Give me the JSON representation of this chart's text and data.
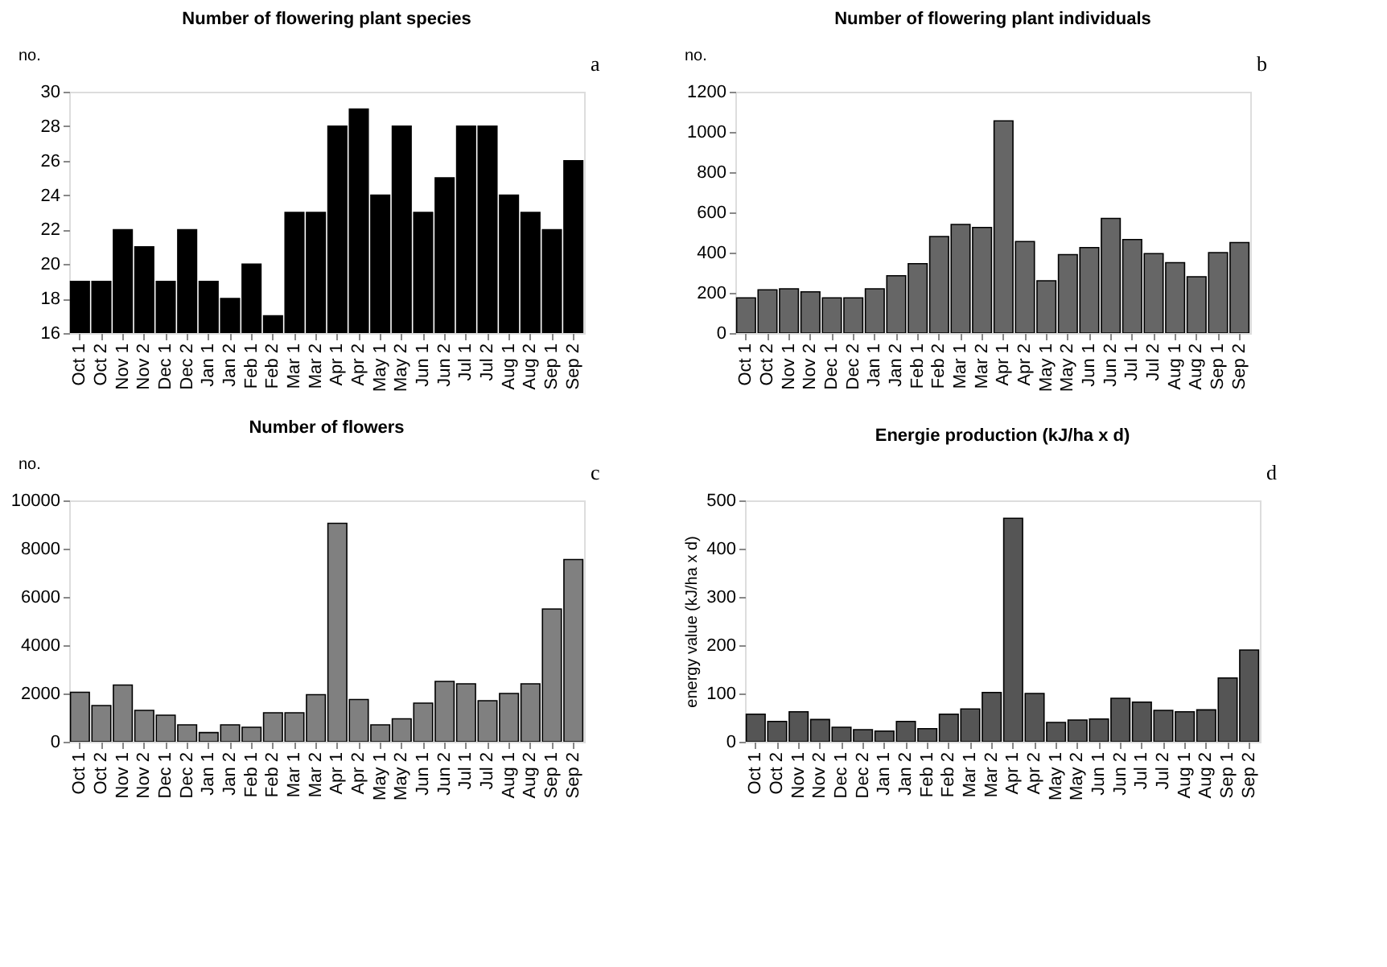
{
  "chart_data": [
    {
      "type": "bar",
      "title": "Number of flowering plant species",
      "ylabel": "no.",
      "annotations": [
        "a"
      ],
      "color": "#000000",
      "ylim": [
        16,
        30
      ],
      "yticks": [
        16,
        18,
        20,
        22,
        24,
        26,
        28,
        30
      ],
      "grid": false,
      "categories": [
        "Oct 1",
        "Oct 2",
        "Nov 1",
        "Nov 2",
        "Dec 1",
        "Dec 2",
        "Jan 1",
        "Jan 2",
        "Feb 1",
        "Feb 2",
        "Mar 1",
        "Mar 2",
        "Apr 1",
        "Apr 2",
        "May 1",
        "May 2",
        "Jun 1",
        "Jun 2",
        "Jul 1",
        "Jul 2",
        "Aug 1",
        "Aug 2",
        "Sep 1",
        "Sep 2"
      ],
      "values": [
        19,
        19,
        22,
        21,
        19,
        22,
        19,
        18,
        20,
        17,
        23,
        23,
        28,
        29,
        24,
        28,
        23,
        25,
        28,
        28,
        24,
        23,
        22,
        26
      ]
    },
    {
      "type": "bar",
      "title": "Number of flowering plant individuals",
      "ylabel": "no.",
      "annotations": [
        "b"
      ],
      "color": "#666666",
      "ylim": [
        0,
        1200
      ],
      "yticks": [
        0,
        200,
        400,
        600,
        800,
        1000,
        1200
      ],
      "grid": false,
      "categories": [
        "Oct 1",
        "Oct 2",
        "Nov 1",
        "Nov 2",
        "Dec 1",
        "Dec 2",
        "Jan 1",
        "Jan 2",
        "Feb 1",
        "Feb 2",
        "Mar 1",
        "Mar 2",
        "Apr 1",
        "Apr 2",
        "May 1",
        "May 2",
        "Jun 1",
        "Jun 2",
        "Jul 1",
        "Jul 2",
        "Aug 1",
        "Aug 2",
        "Sep 1",
        "Sep 2"
      ],
      "values": [
        175,
        215,
        220,
        205,
        175,
        175,
        220,
        285,
        345,
        480,
        540,
        525,
        1055,
        455,
        260,
        390,
        425,
        570,
        465,
        395,
        350,
        280,
        400,
        450
      ]
    },
    {
      "type": "bar",
      "title": "Number of flowers",
      "ylabel": "no.",
      "annotations": [
        "c"
      ],
      "color": "#808080",
      "ylim": [
        0,
        10000
      ],
      "yticks": [
        0,
        2000,
        4000,
        6000,
        8000,
        10000
      ],
      "grid": false,
      "categories": [
        "Oct 1",
        "Oct 2",
        "Nov 1",
        "Nov 2",
        "Dec 1",
        "Dec 2",
        "Jan 1",
        "Jan 2",
        "Feb 1",
        "Feb 2",
        "Mar 1",
        "Mar 2",
        "Apr 1",
        "Apr 2",
        "May 1",
        "May 2",
        "Jun 1",
        "Jun 2",
        "Jul 1",
        "Jul 2",
        "Aug 1",
        "Aug 2",
        "Sep 1",
        "Sep 2"
      ],
      "values": [
        2050,
        1500,
        2350,
        1300,
        1100,
        700,
        380,
        700,
        600,
        1200,
        1200,
        1950,
        9050,
        1750,
        700,
        950,
        1600,
        2500,
        2400,
        1700,
        2000,
        2400,
        5500,
        7550
      ]
    },
    {
      "type": "bar",
      "title": "Energie production (kJ/ha x d)",
      "ylabel": "energy value (kJ/ha x d)",
      "annotations": [
        "d"
      ],
      "color": "#555555",
      "ylim": [
        0,
        500
      ],
      "yticks": [
        0,
        100,
        200,
        300,
        400,
        500
      ],
      "grid": false,
      "categories": [
        "Oct 1",
        "Oct 2",
        "Nov 1",
        "Nov 2",
        "Dec 1",
        "Dec 2",
        "Jan 1",
        "Jan 2",
        "Feb 1",
        "Feb 2",
        "Mar 1",
        "Mar 2",
        "Apr 1",
        "Apr 2",
        "May 1",
        "May 2",
        "Jun 1",
        "Jun 2",
        "Jul 1",
        "Jul 2",
        "Aug 1",
        "Aug 2",
        "Sep 1",
        "Sep 2"
      ],
      "values": [
        57,
        42,
        62,
        46,
        30,
        25,
        22,
        42,
        27,
        57,
        68,
        102,
        463,
        100,
        40,
        45,
        47,
        90,
        82,
        65,
        62,
        66,
        132,
        190
      ]
    }
  ]
}
